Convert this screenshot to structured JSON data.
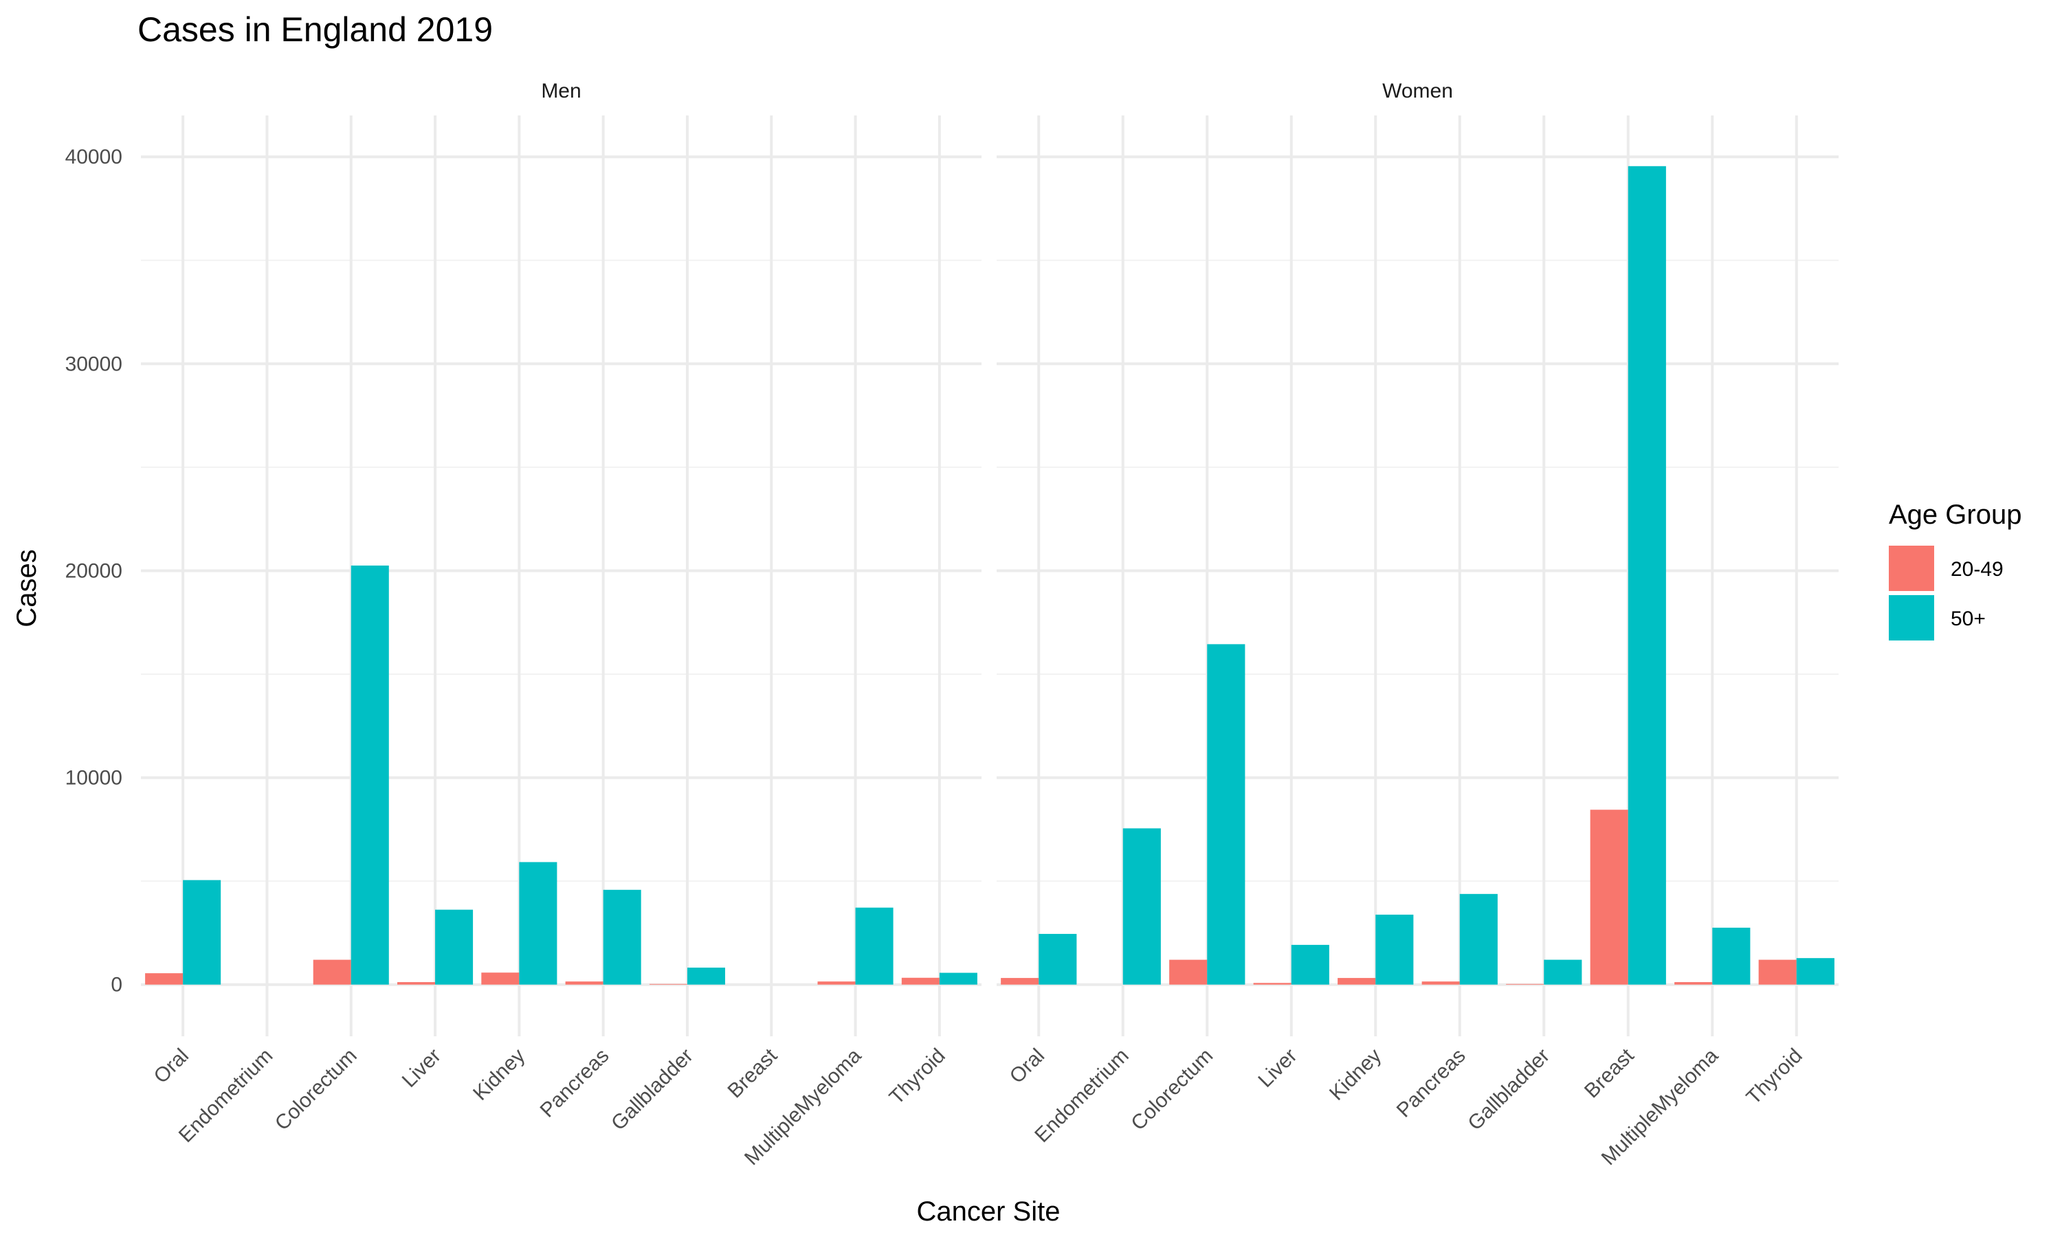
{
  "chart_data": {
    "type": "bar",
    "title": "Cases in England 2019",
    "xlabel": "Cancer Site",
    "ylabel": "Cases",
    "ylim": [
      -2500,
      42000
    ],
    "yticks": [
      0,
      10000,
      20000,
      30000,
      40000
    ],
    "grid": true,
    "legend": {
      "title": "Age Group",
      "placement": "right"
    },
    "categories": [
      "Oral",
      "Endometrium",
      "Colorectum",
      "Liver",
      "Kidney",
      "Pancreas",
      "Gallbladder",
      "Breast",
      "MultipleMyeloma",
      "Thyroid"
    ],
    "facets": [
      {
        "label": "Men",
        "series": [
          {
            "name": "20-49",
            "color": "#F8766D",
            "values": [
              550,
              0,
              1200,
              120,
              580,
              150,
              30,
              0,
              150,
              330
            ]
          },
          {
            "name": "50+",
            "color": "#00BFC4",
            "values": [
              5050,
              0,
              20250,
              3620,
              5920,
              4580,
              820,
              0,
              3720,
              570
            ]
          }
        ]
      },
      {
        "label": "Women",
        "series": [
          {
            "name": "20-49",
            "color": "#F8766D",
            "values": [
              320,
              0,
              1200,
              80,
              320,
              150,
              30,
              8450,
              120,
              1200
            ]
          },
          {
            "name": "50+",
            "color": "#00BFC4",
            "values": [
              2450,
              7550,
              16450,
              1920,
              3380,
              4380,
              1200,
              39550,
              2750,
              1280
            ]
          }
        ]
      }
    ]
  }
}
